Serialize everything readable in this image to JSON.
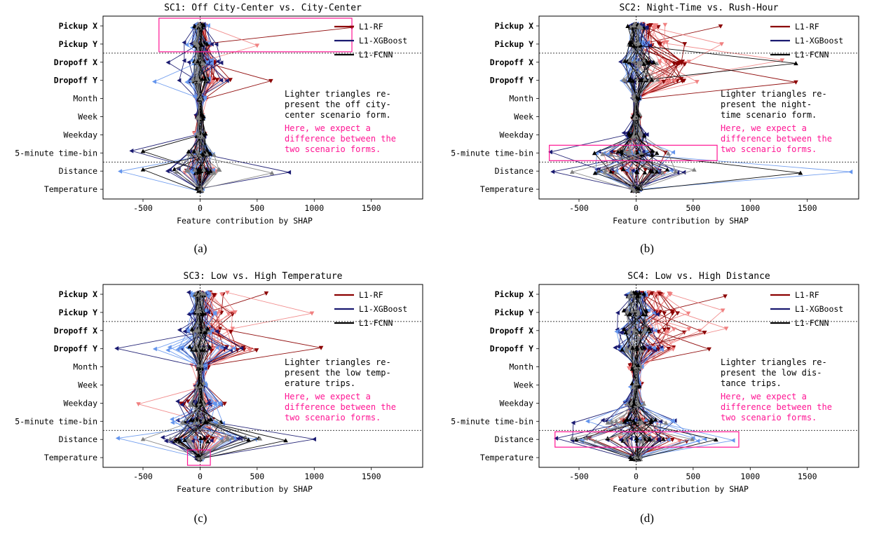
{
  "colors": {
    "rf_dark": "#8b0000",
    "rf_light": "#f08080",
    "xgb_dark": "#191970",
    "xgb_light": "#6495ed",
    "fcnn_dark": "#000000",
    "fcnn_light": "#808080",
    "highlight": "#ff1493"
  },
  "chart_data": [
    {
      "type": "scatter",
      "panel_label": "(a)",
      "title": "SC1: Off City-Center vs. City-Center",
      "xlabel": "Feature contribution by SHAP",
      "ylabel": "",
      "xlim": [
        -850,
        1950
      ],
      "xticks": [
        "-500",
        "0",
        "500",
        "1000",
        "1500"
      ],
      "xtick_values": [
        -500,
        0,
        500,
        1000,
        1500
      ],
      "features": [
        "Pickup X",
        "Pickup Y",
        "Dropoff X",
        "Dropoff Y",
        "Month",
        "Week",
        "Weekday",
        "5-minute time-bin",
        "Distance",
        "Temperature"
      ],
      "bold_features": [
        "Pickup X",
        "Pickup Y",
        "Dropoff X",
        "Dropoff Y"
      ],
      "legend": [
        "L1-RF",
        "L1-XGBoost",
        "L1-FCNN"
      ],
      "legend_position": "top-right",
      "note_black": [
        "Lighter triangles re-",
        "present the off city-",
        "center scenario form."
      ],
      "note_pink": [
        "Here, we expect a",
        "difference between the",
        "two scenario forms."
      ],
      "highlight_rows": [
        0,
        1
      ],
      "highlight_xrange": [
        -360,
        1330
      ],
      "extent": {
        "rf": [
          60,
          140,
          160,
          320,
          60,
          50,
          60,
          80,
          200,
          20
        ],
        "xgb": [
          80,
          150,
          250,
          280,
          60,
          50,
          80,
          200,
          400,
          30
        ],
        "fcnn": [
          60,
          80,
          80,
          100,
          20,
          40,
          60,
          150,
          300,
          30
        ],
        "rf_max": [
          [
            0,
            1330
          ],
          [
            1,
            500
          ],
          [
            3,
            620
          ]
        ],
        "xgb_max": [
          [
            2,
            -280
          ],
          [
            3,
            -400
          ],
          [
            7,
            -600
          ],
          [
            8,
            -700
          ],
          [
            8,
            780
          ]
        ],
        "fcnn_max": [
          [
            8,
            -500
          ],
          [
            8,
            630
          ],
          [
            7,
            -500
          ]
        ]
      }
    },
    {
      "type": "scatter",
      "panel_label": "(b)",
      "title": "SC2: Night-Time vs. Rush-Hour",
      "xlabel": "Feature contribution by SHAP",
      "ylabel": "",
      "xlim": [
        -850,
        1950
      ],
      "xticks": [
        "-500",
        "0",
        "500",
        "1000",
        "1500"
      ],
      "xtick_values": [
        -500,
        0,
        500,
        1000,
        1500
      ],
      "features": [
        "Pickup X",
        "Pickup Y",
        "Dropoff X",
        "Dropoff Y",
        "Month",
        "Week",
        "Weekday",
        "5-minute time-bin",
        "Distance",
        "Temperature"
      ],
      "bold_features": [
        "Pickup X",
        "Pickup Y",
        "Dropoff X",
        "Dropoff Y"
      ],
      "legend": [
        "L1-RF",
        "L1-XGBoost",
        "L1-FCNN"
      ],
      "legend_position": "top-right",
      "note_black": [
        "Lighter triangles re-",
        "present the night-",
        "time scenario form."
      ],
      "note_pink": [
        "Here, we expect a",
        "difference between the",
        "two scenario forms."
      ],
      "highlight_rows": [
        7
      ],
      "highlight_xrange": [
        -760,
        710
      ],
      "extent": {
        "rf": [
          320,
          550,
          900,
          1000,
          40,
          40,
          60,
          300,
          400,
          40
        ],
        "xgb": [
          120,
          160,
          250,
          200,
          40,
          40,
          120,
          500,
          700,
          60
        ],
        "fcnn": [
          80,
          100,
          200,
          200,
          30,
          40,
          80,
          400,
          700,
          60
        ],
        "rf_max": [
          [
            0,
            740
          ],
          [
            2,
            1280
          ],
          [
            3,
            1400
          ],
          [
            1,
            750
          ]
        ],
        "xgb_max": [
          [
            7,
            -750
          ],
          [
            8,
            1880
          ],
          [
            8,
            -730
          ]
        ],
        "fcnn_max": [
          [
            8,
            1440
          ],
          [
            8,
            -560
          ],
          [
            2,
            1400
          ]
        ]
      }
    },
    {
      "type": "scatter",
      "panel_label": "(c)",
      "title": "SC3: Low vs. High Temperature",
      "xlabel": "Feature contribution by SHAP",
      "ylabel": "",
      "xlim": [
        -850,
        1950
      ],
      "xticks": [
        "-500",
        "0",
        "500",
        "1000",
        "1500"
      ],
      "xtick_values": [
        -500,
        0,
        500,
        1000,
        1500
      ],
      "features": [
        "Pickup X",
        "Pickup Y",
        "Dropoff X",
        "Dropoff Y",
        "Month",
        "Week",
        "Weekday",
        "5-minute time-bin",
        "Distance",
        "Temperature"
      ],
      "bold_features": [
        "Pickup X",
        "Pickup Y",
        "Dropoff X",
        "Dropoff Y"
      ],
      "legend": [
        "L1-RF",
        "L1-XGBoost",
        "L1-FCNN"
      ],
      "legend_position": "top-right",
      "note_black": [
        "Lighter triangles re-",
        "present the low temp-",
        "erature trips."
      ],
      "note_pink": [
        "Here, we expect a",
        "difference between the",
        "two scenario forms."
      ],
      "highlight_rows": [
        9
      ],
      "highlight_xrange": [
        -110,
        90
      ],
      "extent": {
        "rf": [
          300,
          420,
          450,
          600,
          80,
          60,
          280,
          160,
          300,
          40
        ],
        "xgb": [
          120,
          160,
          250,
          500,
          60,
          60,
          300,
          350,
          650,
          40
        ],
        "fcnn": [
          60,
          80,
          90,
          120,
          30,
          40,
          120,
          200,
          700,
          40
        ],
        "rf_max": [
          [
            0,
            580
          ],
          [
            1,
            980
          ],
          [
            3,
            1060
          ],
          [
            6,
            -540
          ]
        ],
        "xgb_max": [
          [
            3,
            -730
          ],
          [
            8,
            -720
          ],
          [
            8,
            1000
          ]
        ],
        "fcnn_max": [
          [
            8,
            750
          ],
          [
            8,
            -500
          ]
        ]
      }
    },
    {
      "type": "scatter",
      "panel_label": "(d)",
      "title": "SC4: Low vs. High Distance",
      "xlabel": "Feature contribution by SHAP",
      "ylabel": "",
      "xlim": [
        -850,
        1950
      ],
      "xticks": [
        "-500",
        "0",
        "500",
        "1000",
        "1500"
      ],
      "xtick_values": [
        -500,
        0,
        500,
        1000,
        1500
      ],
      "features": [
        "Pickup X",
        "Pickup Y",
        "Dropoff X",
        "Dropoff Y",
        "Month",
        "Week",
        "Weekday",
        "5-minute time-bin",
        "Distance",
        "Temperature"
      ],
      "bold_features": [
        "Pickup X",
        "Pickup Y",
        "Dropoff X",
        "Dropoff Y"
      ],
      "legend": [
        "L1-RF",
        "L1-XGBoost",
        "L1-FCNN"
      ],
      "legend_position": "top-right",
      "note_black": [
        "Lighter triangles re-",
        "present the low dis-",
        "tance trips."
      ],
      "note_pink": [
        "Here, we expect a",
        "difference between the",
        "two scenario forms."
      ],
      "highlight_rows": [
        8
      ],
      "highlight_xrange": [
        -710,
        900
      ],
      "extent": {
        "rf": [
          500,
          500,
          650,
          450,
          80,
          60,
          100,
          200,
          500,
          40
        ],
        "xgb": [
          150,
          200,
          250,
          300,
          60,
          60,
          150,
          500,
          700,
          60
        ],
        "fcnn": [
          100,
          120,
          150,
          150,
          40,
          40,
          100,
          300,
          700,
          60
        ],
        "rf_max": [
          [
            0,
            780
          ],
          [
            2,
            790
          ],
          [
            3,
            640
          ],
          [
            1,
            760
          ]
        ],
        "xgb_max": [
          [
            7,
            -550
          ],
          [
            8,
            850
          ],
          [
            8,
            -700
          ]
        ],
        "fcnn_max": [
          [
            8,
            700
          ],
          [
            8,
            -560
          ]
        ]
      }
    }
  ]
}
